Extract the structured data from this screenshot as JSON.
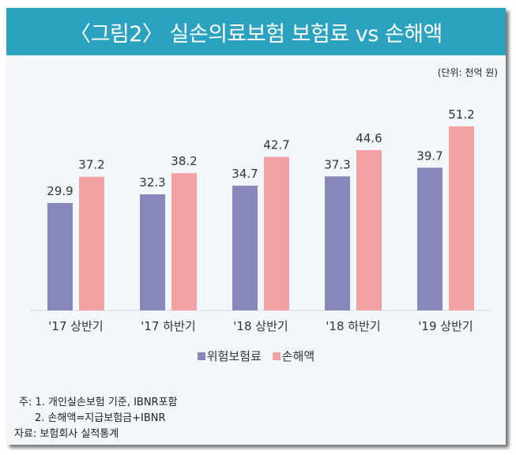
{
  "title": "〈그림2〉 실손의료보험 보험료 vs 손해액",
  "unit": "(단위: 천억 원)",
  "notes": [
    "주: 1. 개인실손보험 기준, IBNR포함",
    "2. 손해액=지급보험금+IBNR",
    "자료: 보험회사 실적통계"
  ],
  "chart_data": {
    "type": "bar",
    "title": "〈그림2〉 실손의료보험 보험료 vs 손해액",
    "categories": [
      "'17 상반기",
      "'17 하반기",
      "'18 상반기",
      "'18 하반기",
      "'19 상반기"
    ],
    "series": [
      {
        "name": "위험보험료",
        "color": "#8588b8",
        "values": [
          29.9,
          32.3,
          34.7,
          37.3,
          39.7
        ]
      },
      {
        "name": "손해액",
        "color": "#f2a0a3",
        "values": [
          37.2,
          38.2,
          42.7,
          44.6,
          51.2
        ]
      }
    ],
    "ylim": [
      0,
      55
    ],
    "grid": false,
    "legend": "bottom"
  }
}
